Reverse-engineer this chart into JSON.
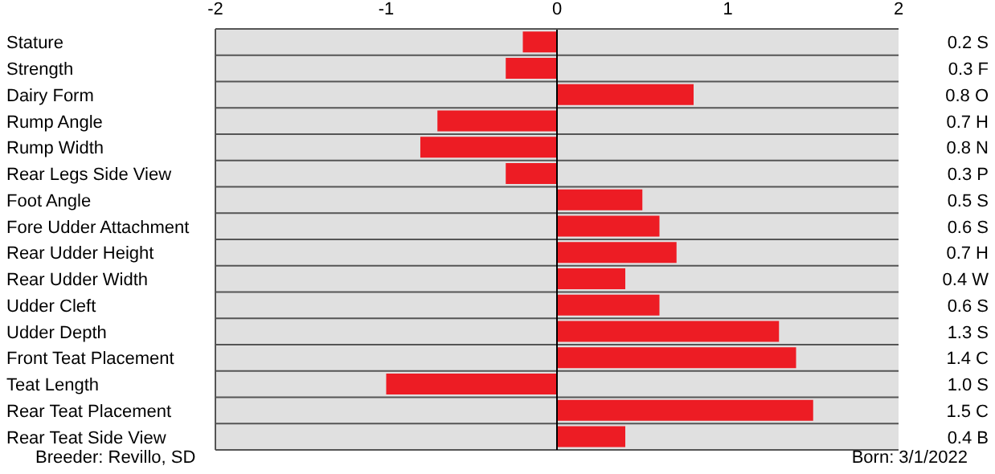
{
  "chart_data": {
    "type": "bar",
    "orientation": "horizontal",
    "categories": [
      "Stature",
      "Strength",
      "Dairy Form",
      "Rump Angle",
      "Rump Width",
      "Rear Legs Side View",
      "Foot Angle",
      "Fore Udder Attachment",
      "Rear Udder Height",
      "Rear Udder Width",
      "Udder Cleft",
      "Udder Depth",
      "Front Teat Placement",
      "Teat Length",
      "Rear Teat Placement",
      "Rear Teat Side View"
    ],
    "values": [
      -0.2,
      -0.3,
      0.8,
      -0.7,
      -0.8,
      -0.3,
      0.5,
      0.6,
      0.7,
      0.4,
      0.6,
      1.3,
      1.4,
      -1.0,
      1.5,
      0.4
    ],
    "color": "#ed1c24",
    "xlim": [
      -2,
      2
    ],
    "xticks": [
      -2,
      -1,
      0,
      1,
      2
    ],
    "grid": "y",
    "legend": false,
    "ref_lines": [
      {
        "axis": "x",
        "value": 0,
        "color": "#000000"
      }
    ],
    "annotations": [
      "0.2 S",
      "0.3 F",
      "0.8 O",
      "0.7 H",
      "0.8 N",
      "0.3 P",
      "0.5 S",
      "0.6 S",
      "0.7 H",
      "0.4 W",
      "0.6 S",
      "1.3 S",
      "1.4 C",
      "1.0 S",
      "1.5 C",
      "0.4 B",
      "Breeder:  Revillo, SD",
      "Born:  3/1/2022"
    ]
  }
}
